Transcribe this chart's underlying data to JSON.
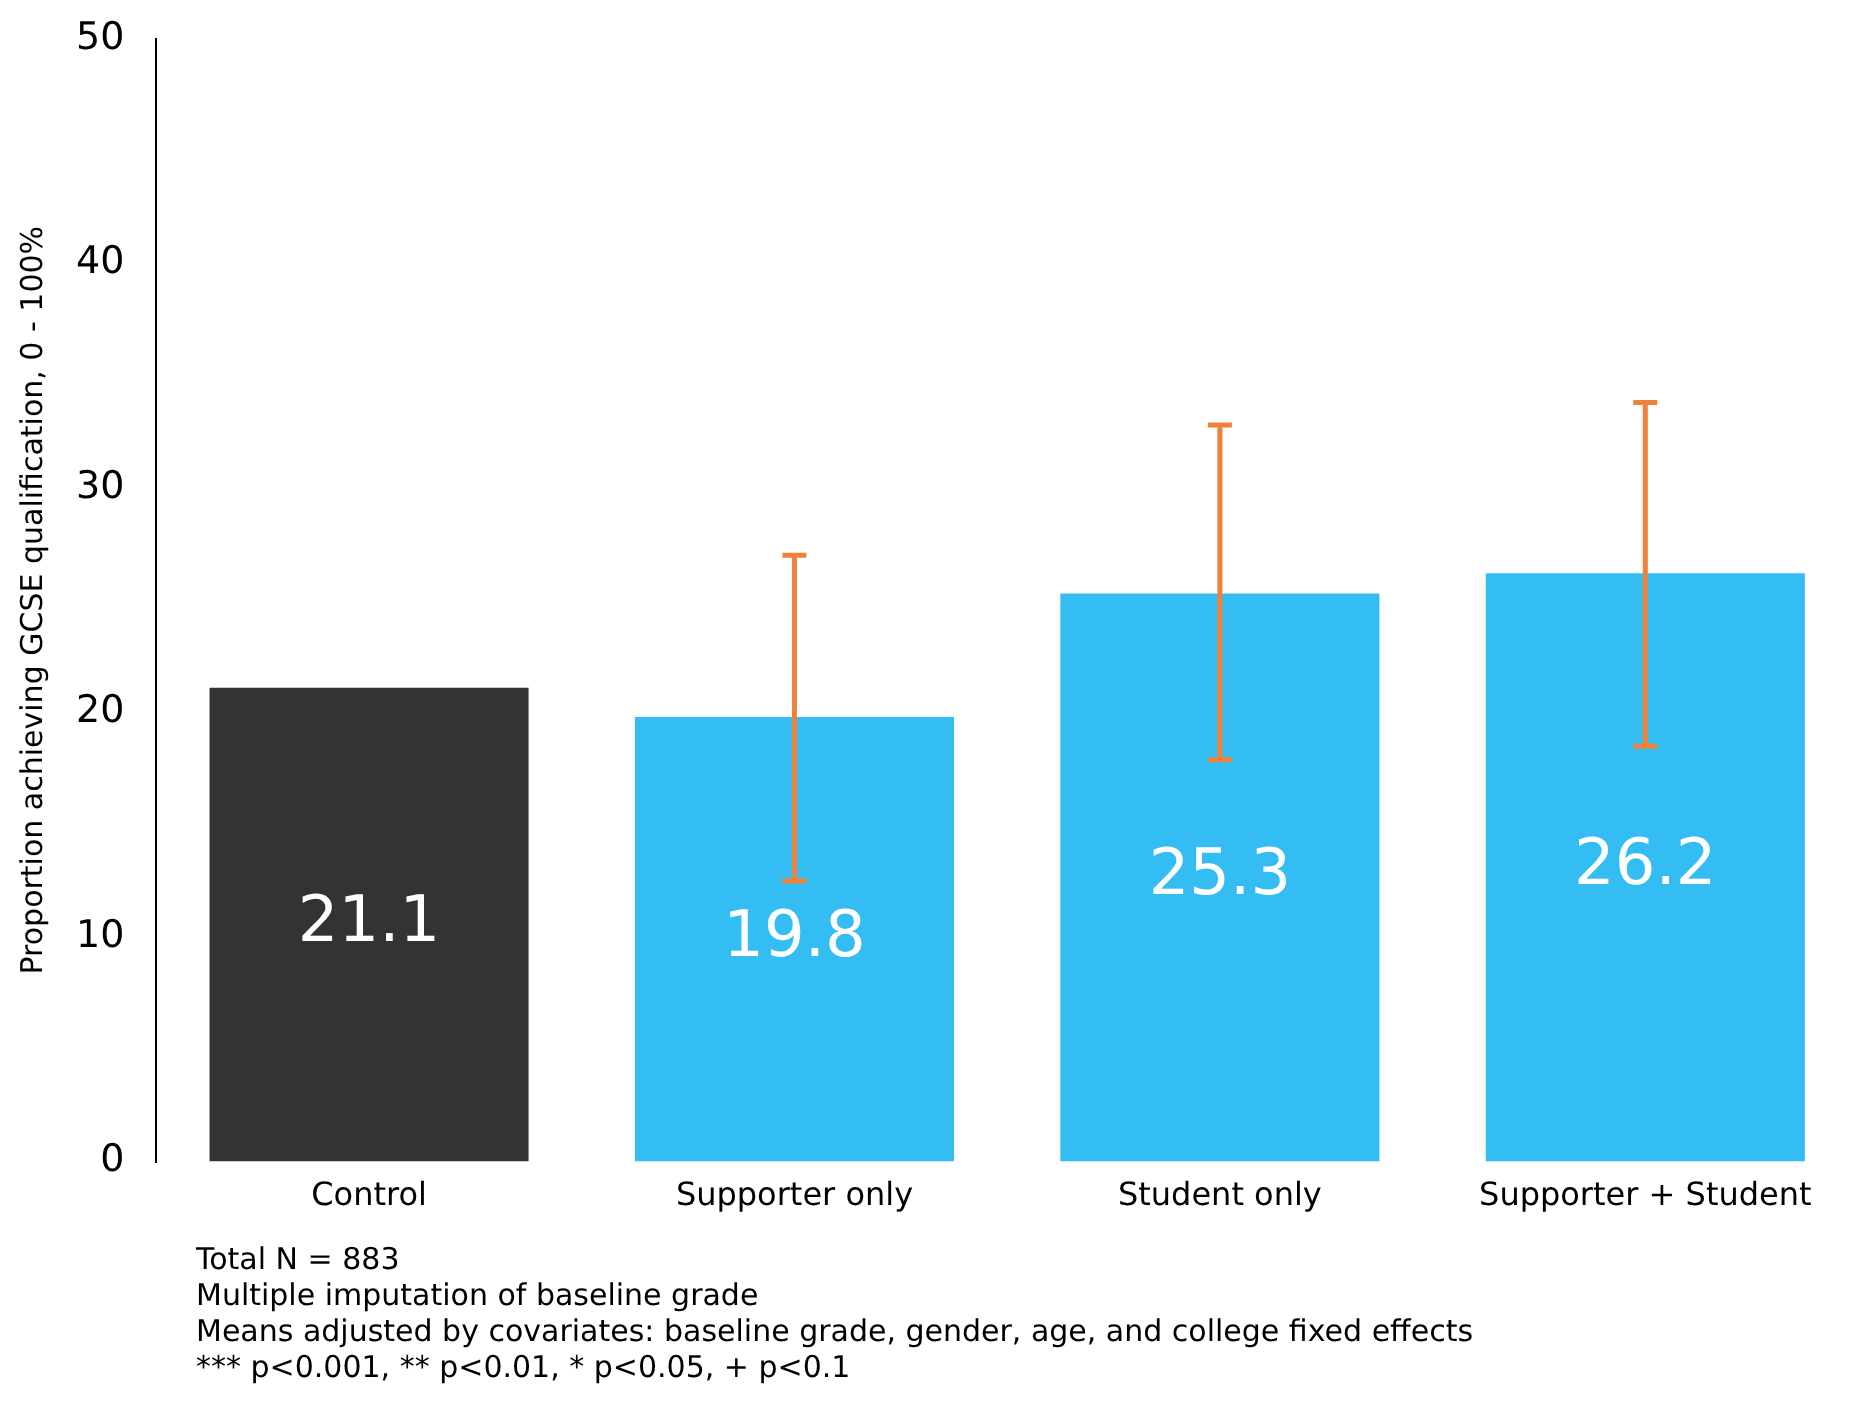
{
  "chart_data": {
    "type": "bar",
    "ylabel": "Proportion achieving GCSE qualification, 0 - 100%",
    "categories": [
      "Control",
      "Supporter only",
      "Student only",
      "Supporter + Student"
    ],
    "values": [
      21.1,
      19.8,
      25.3,
      26.2
    ],
    "colors": [
      "#333333",
      "#33bdf2",
      "#33bdf2",
      "#33bdf2"
    ],
    "errors": [
      null,
      [
        12.5,
        27.0
      ],
      [
        17.9,
        32.8
      ],
      [
        18.5,
        33.8
      ]
    ],
    "data_labels": true,
    "ylim": [
      0,
      50
    ],
    "yticks": [
      0,
      10,
      20,
      30,
      40,
      50
    ],
    "grid": false,
    "legend": false,
    "annotations": [
      "Total N = 883",
      "Multiple imputation of baseline grade",
      "Means adjusted by covariates: baseline grade, gender, age, and college fixed effects",
      "*** p<0.001, ** p<0.01, * p<0.05, + p<0.1"
    ]
  }
}
